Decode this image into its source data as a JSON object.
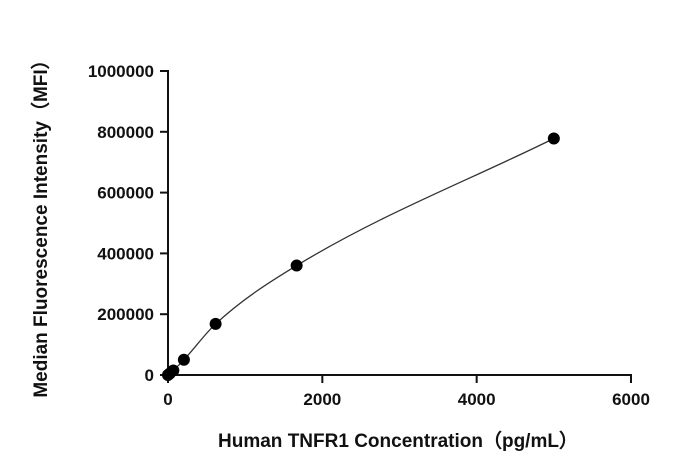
{
  "chart_data": {
    "type": "scatter",
    "title": "",
    "xlabel": "Human TNFR1 Concentration（pg/mL）",
    "ylabel": "Median Fluorescence Intensity（MFI）",
    "xlim": [
      0,
      6000
    ],
    "ylim": [
      0,
      1000000
    ],
    "xticks": [
      0,
      2000,
      4000,
      6000
    ],
    "yticks": [
      0,
      200000,
      400000,
      600000,
      800000,
      1000000
    ],
    "xtick_labels": [
      "0",
      "2000",
      "4000",
      "6000"
    ],
    "ytick_labels": [
      "0",
      "200000",
      "400000",
      "600000",
      "800000",
      "1000000"
    ],
    "grid": false,
    "legend": "none",
    "marker_color": "#000000",
    "curve_color": "#333333",
    "fit": "four-parameter logistic curve through points",
    "series": [
      {
        "points": [
          {
            "x": 0,
            "y": 0
          },
          {
            "x": 23,
            "y": 5000
          },
          {
            "x": 69,
            "y": 15000
          },
          {
            "x": 206,
            "y": 50000
          },
          {
            "x": 617,
            "y": 168000
          },
          {
            "x": 1667,
            "y": 360000
          },
          {
            "x": 5000,
            "y": 778000
          }
        ]
      }
    ]
  }
}
